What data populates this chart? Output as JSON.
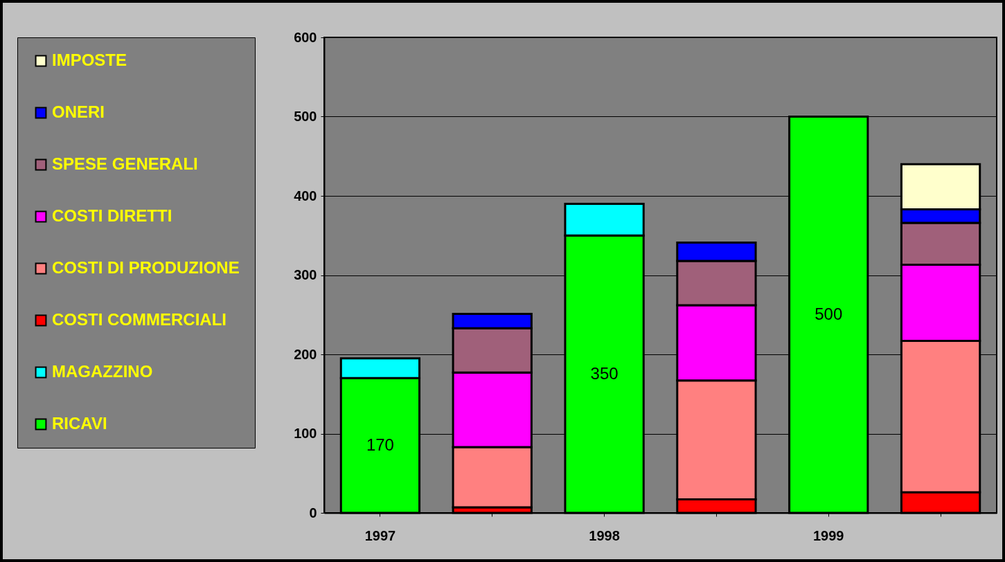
{
  "chart_data": {
    "type": "bar",
    "stacked": true,
    "categories": [
      "1997",
      null,
      "1998",
      null,
      "1999",
      null
    ],
    "series": [
      {
        "name": "RICAVI",
        "color": "#00ff00",
        "values": [
          170,
          null,
          350,
          null,
          500,
          null
        ],
        "value_labels": [
          "170",
          null,
          "350",
          null,
          "500",
          null
        ]
      },
      {
        "name": "MAGAZZINO",
        "color": "#00ffff",
        "values": [
          25,
          null,
          40,
          null,
          null,
          null
        ]
      },
      {
        "name": "COSTI COMMERCIALI",
        "color": "#ff0000",
        "values": [
          null,
          7,
          null,
          17,
          null,
          26
        ]
      },
      {
        "name": "COSTI DI PRODUZIONE",
        "color": "#ff8080",
        "values": [
          null,
          76,
          null,
          150,
          null,
          191
        ]
      },
      {
        "name": "COSTI DIRETTI",
        "color": "#ff00ff",
        "values": [
          null,
          94,
          null,
          95,
          null,
          96
        ]
      },
      {
        "name": "SPESE GENERALI",
        "color": "#a0607a",
        "values": [
          null,
          56,
          null,
          56,
          null,
          53
        ]
      },
      {
        "name": "ONERI",
        "color": "#0000ff",
        "values": [
          null,
          18,
          null,
          23,
          null,
          17
        ]
      },
      {
        "name": "IMPOSTE",
        "color": "#ffffcc",
        "values": [
          null,
          null,
          null,
          null,
          null,
          57
        ]
      }
    ],
    "ylim": [
      0,
      600
    ],
    "yticks": [
      0,
      100,
      200,
      300,
      400,
      500,
      600
    ],
    "grid": "y",
    "legend": "left"
  }
}
